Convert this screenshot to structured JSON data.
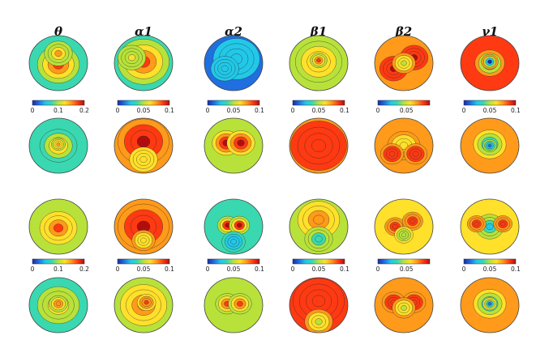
{
  "bands": [
    {
      "key": "theta",
      "label": "θ",
      "colorbar_ticks": [
        "0",
        "0.1",
        "0.2"
      ],
      "colorbar_ticks_row3": [
        "0",
        "0.1",
        "0.2"
      ]
    },
    {
      "key": "alpha1",
      "label": "α1",
      "colorbar_ticks": [
        "0",
        "0.05",
        "0.1"
      ],
      "colorbar_ticks_row3": [
        "0",
        "0.05",
        "0.1"
      ]
    },
    {
      "key": "alpha2",
      "label": "α2",
      "colorbar_ticks": [
        "0",
        "0.05",
        "0.1"
      ],
      "colorbar_ticks_row3": [
        "0",
        "0.05",
        "0.1"
      ]
    },
    {
      "key": "beta1",
      "label": "β1",
      "colorbar_ticks": [
        "0",
        "0.05",
        "0.1"
      ],
      "colorbar_ticks_row3": [
        "0",
        "0.05",
        "0.1"
      ]
    },
    {
      "key": "beta2",
      "label": "β2",
      "colorbar_ticks": [
        "0",
        "0.05"
      ],
      "colorbar_ticks_row3": [
        "0",
        "0.05"
      ]
    },
    {
      "key": "gamma1",
      "label": "γ1",
      "colorbar_ticks": [
        "0",
        "0.05",
        "0.1"
      ],
      "colorbar_ticks_row3": [
        "0",
        "0.05",
        "0.1"
      ]
    }
  ],
  "colormap": [
    "#1a2aa8",
    "#1f6fe0",
    "#22c8e8",
    "#3ad8b0",
    "#b8e23a",
    "#ffe02a",
    "#ff9a1a",
    "#ff3a12",
    "#b00e0e"
  ],
  "maps": [
    [
      {
        "bg": 0.35,
        "blobs": [
          {
            "u": 0,
            "v": -0.05,
            "r": 0.45,
            "val": 0.9
          },
          {
            "u": 0,
            "v": 0.35,
            "r": 0.3,
            "val": 0.7
          }
        ]
      },
      {
        "bg": 0.4,
        "blobs": [
          {
            "u": 0,
            "v": 0.05,
            "r": 0.55,
            "val": 0.92
          },
          {
            "u": -0.4,
            "v": 0.2,
            "r": 0.3,
            "val": 0.6
          }
        ]
      },
      {
        "bg": 0.18,
        "blobs": [
          {
            "u": 0.1,
            "v": 0.15,
            "r": 0.5,
            "val": 0.28
          },
          {
            "u": -0.3,
            "v": -0.2,
            "r": 0.3,
            "val": 0.3
          }
        ]
      },
      {
        "bg": 0.45,
        "blobs": [
          {
            "u": 0,
            "v": 0.05,
            "r": 0.5,
            "val": 0.68
          },
          {
            "u": 0.0,
            "v": 0.1,
            "r": 0.18,
            "val": 0.85
          }
        ]
      },
      {
        "bg": 0.8,
        "blobs": [
          {
            "u": -0.35,
            "v": -0.2,
            "r": 0.3,
            "val": 0.95
          },
          {
            "u": 0.35,
            "v": 0.2,
            "r": 0.3,
            "val": 0.95
          },
          {
            "u": 0,
            "v": 0.0,
            "r": 0.25,
            "val": 0.55
          }
        ]
      },
      {
        "bg": 0.92,
        "blobs": [
          {
            "u": 0,
            "v": 0.0,
            "r": 0.32,
            "val": 0.2
          },
          {
            "u": 0,
            "v": 0.05,
            "r": 0.18,
            "val": 0.05
          }
        ]
      }
    ],
    [
      {
        "bg": 0.35,
        "blobs": [
          {
            "u": 0,
            "v": 0.0,
            "r": 0.4,
            "val": 0.65
          },
          {
            "u": 0,
            "v": 0.05,
            "r": 0.15,
            "val": 0.78
          }
        ]
      },
      {
        "bg": 0.7,
        "blobs": [
          {
            "u": 0,
            "v": 0.15,
            "r": 0.55,
            "val": 0.97
          },
          {
            "u": 0,
            "v": -0.5,
            "r": 0.3,
            "val": 0.6
          }
        ]
      },
      {
        "bg": 0.55,
        "blobs": [
          {
            "u": -0.25,
            "v": 0.1,
            "r": 0.3,
            "val": 0.97
          },
          {
            "u": 0.25,
            "v": 0.1,
            "r": 0.3,
            "val": 0.97
          }
        ]
      },
      {
        "bg": 0.8,
        "blobs": [
          {
            "u": 0,
            "v": 0.0,
            "r": 0.6,
            "val": 0.92
          }
        ]
      },
      {
        "bg": 0.75,
        "blobs": [
          {
            "u": 0,
            "v": 0.0,
            "r": 0.35,
            "val": 0.6
          },
          {
            "u": -0.4,
            "v": -0.3,
            "r": 0.25,
            "val": 0.9
          },
          {
            "u": 0.4,
            "v": -0.3,
            "r": 0.25,
            "val": 0.9
          }
        ]
      },
      {
        "bg": 0.7,
        "blobs": [
          {
            "u": 0,
            "v": 0.05,
            "r": 0.35,
            "val": 0.22
          },
          {
            "u": 0,
            "v": 0.0,
            "r": 0.15,
            "val": 0.1
          }
        ]
      }
    ],
    [
      {
        "bg": 0.5,
        "blobs": [
          {
            "u": 0,
            "v": -0.05,
            "r": 0.4,
            "val": 0.85
          }
        ]
      },
      {
        "bg": 0.72,
        "blobs": [
          {
            "u": 0,
            "v": 0.0,
            "r": 0.55,
            "val": 0.97
          },
          {
            "u": 0,
            "v": -0.5,
            "r": 0.25,
            "val": 0.65
          }
        ]
      },
      {
        "bg": 0.35,
        "blobs": [
          {
            "u": -0.2,
            "v": 0.05,
            "r": 0.22,
            "val": 0.97
          },
          {
            "u": 0.2,
            "v": 0.05,
            "r": 0.22,
            "val": 0.97
          },
          {
            "u": 0,
            "v": -0.55,
            "r": 0.25,
            "val": 0.2
          }
        ]
      },
      {
        "bg": 0.55,
        "blobs": [
          {
            "u": 0,
            "v": 0.25,
            "r": 0.45,
            "val": 0.8
          },
          {
            "u": 0,
            "v": -0.45,
            "r": 0.3,
            "val": 0.35
          }
        ]
      },
      {
        "bg": 0.65,
        "blobs": [
          {
            "u": -0.3,
            "v": 0.0,
            "r": 0.22,
            "val": 0.9
          },
          {
            "u": 0.3,
            "v": 0.2,
            "r": 0.22,
            "val": 0.88
          },
          {
            "u": 0,
            "v": -0.3,
            "r": 0.2,
            "val": 0.45
          }
        ]
      },
      {
        "bg": 0.65,
        "blobs": [
          {
            "u": 0,
            "v": 0.0,
            "r": 0.3,
            "val": 0.28
          },
          {
            "u": -0.45,
            "v": 0.1,
            "r": 0.2,
            "val": 0.88
          },
          {
            "u": 0.45,
            "v": 0.1,
            "r": 0.2,
            "val": 0.88
          }
        ]
      }
    ],
    [
      {
        "bg": 0.4,
        "blobs": [
          {
            "u": 0,
            "v": 0.0,
            "r": 0.45,
            "val": 0.68
          },
          {
            "u": 0,
            "v": 0.05,
            "r": 0.2,
            "val": 0.8
          }
        ]
      },
      {
        "bg": 0.55,
        "blobs": [
          {
            "u": 0,
            "v": 0.0,
            "r": 0.5,
            "val": 0.78
          },
          {
            "u": 0.1,
            "v": 0.1,
            "r": 0.2,
            "val": 0.86
          }
        ]
      },
      {
        "bg": 0.45,
        "blobs": [
          {
            "u": -0.22,
            "v": 0.05,
            "r": 0.25,
            "val": 0.88
          },
          {
            "u": 0.22,
            "v": 0.05,
            "r": 0.25,
            "val": 0.88
          }
        ]
      },
      {
        "bg": 0.82,
        "blobs": [
          {
            "u": 0,
            "v": 0.15,
            "r": 0.55,
            "val": 0.93
          },
          {
            "u": 0,
            "v": -0.6,
            "r": 0.3,
            "val": 0.55
          }
        ]
      },
      {
        "bg": 0.75,
        "blobs": [
          {
            "u": -0.35,
            "v": 0.1,
            "r": 0.25,
            "val": 0.92
          },
          {
            "u": 0.35,
            "v": 0.1,
            "r": 0.25,
            "val": 0.92
          },
          {
            "u": 0,
            "v": -0.1,
            "r": 0.25,
            "val": 0.55
          }
        ]
      },
      {
        "bg": 0.78,
        "blobs": [
          {
            "u": 0,
            "v": 0.05,
            "r": 0.35,
            "val": 0.25
          },
          {
            "u": 0,
            "v": 0.05,
            "r": 0.15,
            "val": 0.15
          }
        ]
      }
    ]
  ]
}
